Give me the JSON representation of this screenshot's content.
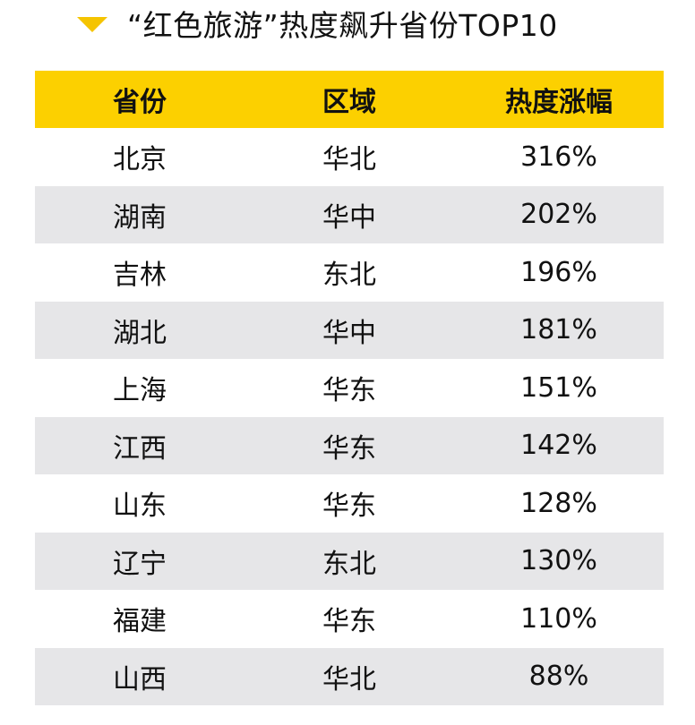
{
  "title": "“红色旅游”热度飙升省份TOP10",
  "accent_color": "#fcd000",
  "stripe_color": "#e6e6e8",
  "icons": {
    "title_marker": "triangle-down-icon"
  },
  "chart_data": {
    "type": "table",
    "title": "“红色旅游”热度飙升省份TOP10",
    "columns": [
      "省份",
      "区域",
      "热度涨幅"
    ],
    "rows": [
      {
        "province": "北京",
        "region": "华北",
        "growth": "316%"
      },
      {
        "province": "湖南",
        "region": "华中",
        "growth": "202%"
      },
      {
        "province": "吉林",
        "region": "东北",
        "growth": "196%"
      },
      {
        "province": "湖北",
        "region": "华中",
        "growth": "181%"
      },
      {
        "province": "上海",
        "region": "华东",
        "growth": "151%"
      },
      {
        "province": "江西",
        "region": "华东",
        "growth": "142%"
      },
      {
        "province": "山东",
        "region": "华东",
        "growth": "128%"
      },
      {
        "province": "辽宁",
        "region": "东北",
        "growth": "130%"
      },
      {
        "province": "福建",
        "region": "华东",
        "growth": "110%"
      },
      {
        "province": "山西",
        "region": "华北",
        "growth": "88%"
      }
    ]
  }
}
